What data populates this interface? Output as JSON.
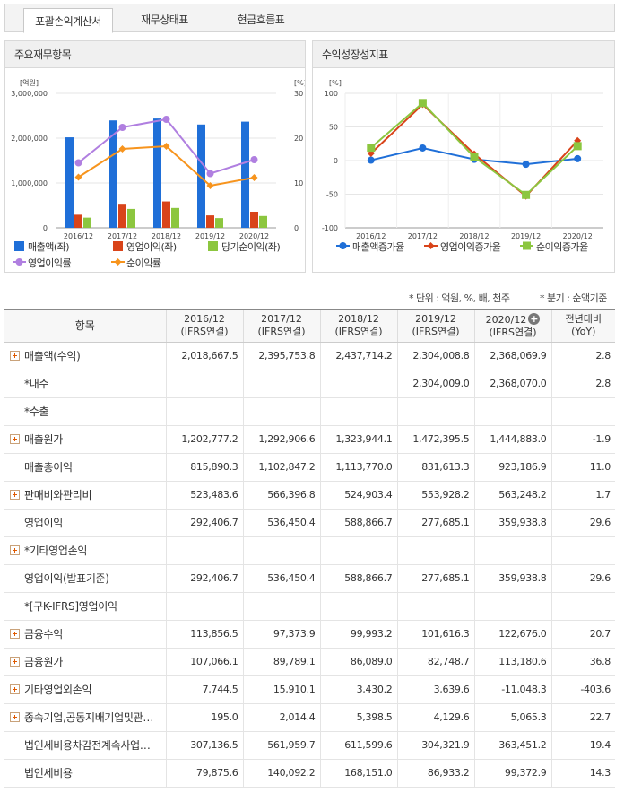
{
  "tabs": [
    {
      "label": "포괄손익계산서",
      "active": true
    },
    {
      "label": "재무상태표",
      "active": false
    },
    {
      "label": "현금흐름표",
      "active": false
    }
  ],
  "panel_left_title": "주요재무항목",
  "panel_right_title": "수익성장성지표",
  "units_note": "* 단위 : 억원, %, 배, 천주",
  "period_note": "* 분기 : 순액기준",
  "chart_data": [
    {
      "type": "bar",
      "categories": [
        "2016/12",
        "2017/12",
        "2018/12",
        "2019/12",
        "2020/12"
      ],
      "left_axis_unit": "[억원]",
      "right_axis_unit": "[%]",
      "left_ticks": [
        "3,000,000",
        "2,000,000",
        "1,000,000",
        "0"
      ],
      "right_ticks": [
        "30",
        "20",
        "10",
        "0"
      ],
      "ylim_left": [
        0,
        3000000
      ],
      "ylim_right": [
        0,
        30
      ],
      "series": [
        {
          "name": "매출액(좌)",
          "type": "bar",
          "axis": "left",
          "color": "#1f6fd8",
          "values": [
            2018667.5,
            2395753.8,
            2437714.2,
            2304008.8,
            2368069.9
          ]
        },
        {
          "name": "영업이익(좌)",
          "type": "bar",
          "axis": "left",
          "color": "#d9441a",
          "values": [
            292406.7,
            536450.4,
            588866.7,
            277685.1,
            359938.8
          ]
        },
        {
          "name": "당기순이익(좌)",
          "type": "bar",
          "axis": "left",
          "color": "#8cc63f",
          "values": [
            227260.9,
            421867.5,
            443449.1,
            217388.7,
            264078.1
          ]
        },
        {
          "name": "영업이익률",
          "type": "line",
          "axis": "right",
          "color": "#b07fe0",
          "values": [
            14.5,
            22.4,
            24.2,
            12.1,
            15.2
          ]
        },
        {
          "name": "순이익률",
          "type": "line",
          "axis": "right",
          "color": "#f7941d",
          "values": [
            11.3,
            17.6,
            18.2,
            9.4,
            11.2
          ]
        }
      ],
      "legend": "bottom"
    },
    {
      "type": "line",
      "categories": [
        "2016/12",
        "2017/12",
        "2018/12",
        "2019/12",
        "2020/12"
      ],
      "axis_unit": "[%]",
      "ticks": [
        "100",
        "50",
        "0",
        "-50",
        "-100"
      ],
      "ylim": [
        -100,
        100
      ],
      "series": [
        {
          "name": "매출액증가율",
          "color": "#1f6fd8",
          "values": [
            0.6,
            18.7,
            1.8,
            -5.5,
            2.8
          ]
        },
        {
          "name": "영업이익증가율",
          "color": "#d9441a",
          "values": [
            10.7,
            83.5,
            9.8,
            -52.8,
            29.6
          ]
        },
        {
          "name": "순이익증가율",
          "color": "#8cc63f",
          "values": [
            19.2,
            85.6,
            5.1,
            -51.0,
            21.5
          ]
        }
      ],
      "legend": "bottom"
    }
  ],
  "table": {
    "header_item": "항목",
    "columns": [
      {
        "line1": "2016/12",
        "line2": "(IFRS연결)"
      },
      {
        "line1": "2017/12",
        "line2": "(IFRS연결)"
      },
      {
        "line1": "2018/12",
        "line2": "(IFRS연결)"
      },
      {
        "line1": "2019/12",
        "line2": "(IFRS연결)"
      },
      {
        "line1": "2020/12",
        "line2": "(IFRS연결)"
      }
    ],
    "yoy_line1": "전년대비",
    "yoy_line2": "(YoY)",
    "rows": [
      {
        "label": "매출액(수익)",
        "expandable": true,
        "values": [
          "2,018,667.5",
          "2,395,753.8",
          "2,437,714.2",
          "2,304,008.8",
          "2,368,069.9"
        ],
        "yoy": "2.8"
      },
      {
        "label": "*내수",
        "expandable": false,
        "values": [
          "",
          "",
          "",
          "2,304,009.0",
          "2,368,070.0"
        ],
        "yoy": "2.8"
      },
      {
        "label": "*수출",
        "expandable": false,
        "values": [
          "",
          "",
          "",
          "",
          ""
        ],
        "yoy": ""
      },
      {
        "label": "매출원가",
        "expandable": true,
        "values": [
          "1,202,777.2",
          "1,292,906.6",
          "1,323,944.1",
          "1,472,395.5",
          "1,444,883.0"
        ],
        "yoy": "-1.9"
      },
      {
        "label": "매출총이익",
        "expandable": false,
        "values": [
          "815,890.3",
          "1,102,847.2",
          "1,113,770.0",
          "831,613.3",
          "923,186.9"
        ],
        "yoy": "11.0"
      },
      {
        "label": "판매비와관리비",
        "expandable": true,
        "values": [
          "523,483.6",
          "566,396.8",
          "524,903.4",
          "553,928.2",
          "563,248.2"
        ],
        "yoy": "1.7"
      },
      {
        "label": "영업이익",
        "expandable": false,
        "values": [
          "292,406.7",
          "536,450.4",
          "588,866.7",
          "277,685.1",
          "359,938.8"
        ],
        "yoy": "29.6"
      },
      {
        "label": "*기타영업손익",
        "expandable": true,
        "values": [
          "",
          "",
          "",
          "",
          ""
        ],
        "yoy": ""
      },
      {
        "label": "영업이익(발표기준)",
        "expandable": false,
        "values": [
          "292,406.7",
          "536,450.4",
          "588,866.7",
          "277,685.1",
          "359,938.8"
        ],
        "yoy": "29.6"
      },
      {
        "label": "*[구K-IFRS]영업이익",
        "expandable": false,
        "values": [
          "",
          "",
          "",
          "",
          ""
        ],
        "yoy": ""
      },
      {
        "label": "금융수익",
        "expandable": true,
        "values": [
          "113,856.5",
          "97,373.9",
          "99,993.2",
          "101,616.3",
          "122,676.0"
        ],
        "yoy": "20.7"
      },
      {
        "label": "금융원가",
        "expandable": true,
        "values": [
          "107,066.1",
          "89,789.1",
          "86,089.0",
          "82,748.7",
          "113,180.6"
        ],
        "yoy": "36.8"
      },
      {
        "label": "기타영업외손익",
        "expandable": true,
        "values": [
          "7,744.5",
          "15,910.1",
          "3,430.2",
          "3,639.6",
          "-11,048.3"
        ],
        "yoy": "-403.6"
      },
      {
        "label": "종속기업,공동지배기업및관…",
        "expandable": true,
        "values": [
          "195.0",
          "2,014.4",
          "5,398.5",
          "4,129.6",
          "5,065.3"
        ],
        "yoy": "22.7"
      },
      {
        "label": "법인세비용차감전계속사업…",
        "expandable": false,
        "values": [
          "307,136.5",
          "561,959.7",
          "611,599.6",
          "304,321.9",
          "363,451.2"
        ],
        "yoy": "19.4"
      },
      {
        "label": "법인세비용",
        "expandable": false,
        "values": [
          "79,875.6",
          "140,092.2",
          "168,151.0",
          "86,933.2",
          "99,372.9"
        ],
        "yoy": "14.3"
      }
    ]
  }
}
